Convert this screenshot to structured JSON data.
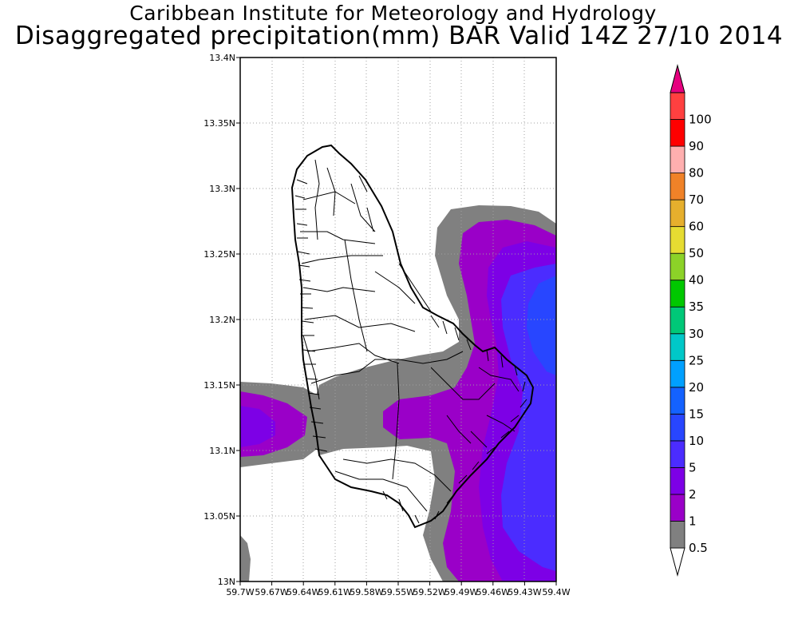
{
  "title_line1": "Caribbean Institute for Meteorology and Hydrology",
  "title_line2": "Disaggregated precipitation(mm) BAR Valid 14Z 27/10 2014",
  "y_ticks": [
    {
      "label": "13.4N",
      "value": 13.4
    },
    {
      "label": "13.35N",
      "value": 13.35
    },
    {
      "label": "13.3N",
      "value": 13.3
    },
    {
      "label": "13.25N",
      "value": 13.25
    },
    {
      "label": "13.2N",
      "value": 13.2
    },
    {
      "label": "13.15N",
      "value": 13.15
    },
    {
      "label": "13.1N",
      "value": 13.1
    },
    {
      "label": "13.05N",
      "value": 13.05
    },
    {
      "label": "13N",
      "value": 13.0
    }
  ],
  "x_ticks": [
    {
      "label": "59.7W",
      "value": -59.7
    },
    {
      "label": "59.67W",
      "value": -59.67
    },
    {
      "label": "59.64W",
      "value": -59.64
    },
    {
      "label": "59.61W",
      "value": -59.61
    },
    {
      "label": "59.58W",
      "value": -59.58
    },
    {
      "label": "59.55W",
      "value": -59.55
    },
    {
      "label": "59.52W",
      "value": -59.52
    },
    {
      "label": "59.49W",
      "value": -59.49
    },
    {
      "label": "59.46W",
      "value": -59.46
    },
    {
      "label": "59.43W",
      "value": -59.43
    },
    {
      "label": "59.4W",
      "value": -59.4
    }
  ],
  "colorbar": {
    "bins": [
      {
        "color": "#ffffff"
      },
      {
        "color": "#808080",
        "label": "0.5"
      },
      {
        "color": "#9a00c8",
        "label": "1"
      },
      {
        "color": "#7d00e6",
        "label": "2"
      },
      {
        "color": "#4b2cff",
        "label": "5"
      },
      {
        "color": "#2846ff",
        "label": "10"
      },
      {
        "color": "#1462ff",
        "label": "15"
      },
      {
        "color": "#00a0ff",
        "label": "20"
      },
      {
        "color": "#00c8c8",
        "label": "25"
      },
      {
        "color": "#00c878",
        "label": "30"
      },
      {
        "color": "#00c800",
        "label": "35"
      },
      {
        "color": "#8cd228",
        "label": "40"
      },
      {
        "color": "#e6dc32",
        "label": "50"
      },
      {
        "color": "#e6af2d",
        "label": "60"
      },
      {
        "color": "#f08228",
        "label": "70"
      },
      {
        "color": "#ffafaf",
        "label": "80"
      },
      {
        "color": "#ff0000",
        "label": "90"
      },
      {
        "color": "#ff4040",
        "label": "100"
      },
      {
        "color": "#e6007f"
      }
    ]
  }
}
